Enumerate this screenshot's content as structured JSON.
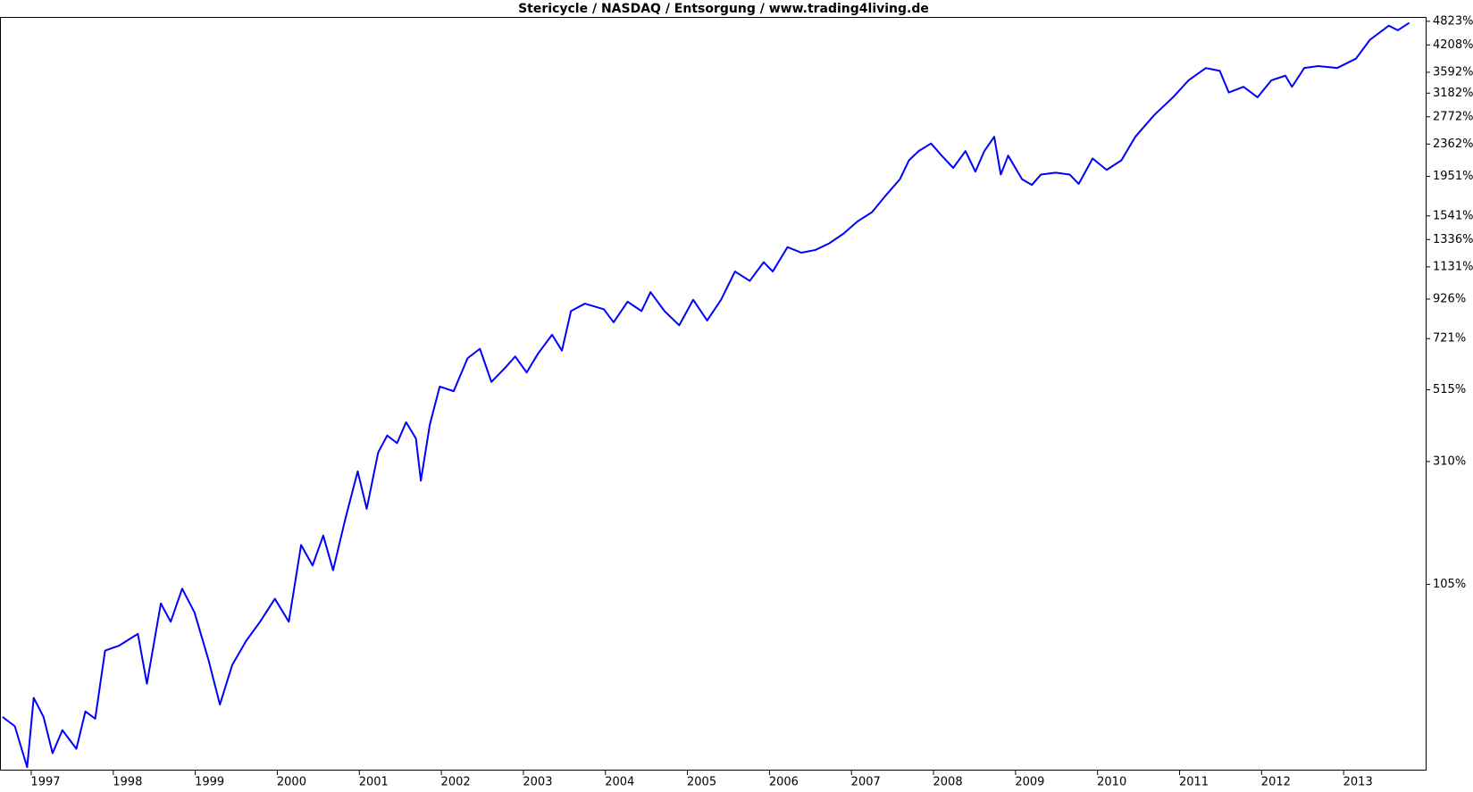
{
  "chart_data": {
    "type": "line",
    "title": "Stericycle / NASDAQ / Entsorgung / www.trading4living.de",
    "yscale": "log",
    "x": [
      1996.65,
      1996.8,
      1996.95,
      1997.03,
      1997.15,
      1997.26,
      1997.38,
      1997.55,
      1997.66,
      1997.78,
      1997.9,
      1998.07,
      1998.3,
      1998.41,
      1998.58,
      1998.7,
      1998.84,
      1998.99,
      1999.16,
      1999.3,
      1999.45,
      1999.62,
      1999.79,
      1999.97,
      2000.14,
      2000.29,
      2000.43,
      2000.56,
      2000.68,
      2000.83,
      2000.98,
      2001.09,
      2001.23,
      2001.34,
      2001.46,
      2001.57,
      2001.69,
      2001.75,
      2001.86,
      2001.98,
      2002.15,
      2002.32,
      2002.47,
      2002.61,
      2002.78,
      2002.9,
      2003.04,
      2003.18,
      2003.35,
      2003.47,
      2003.58,
      2003.75,
      2003.98,
      2004.1,
      2004.27,
      2004.44,
      2004.55,
      2004.72,
      2004.9,
      2005.07,
      2005.24,
      2005.41,
      2005.58,
      2005.76,
      2005.93,
      2006.04,
      2006.22,
      2006.39,
      2006.56,
      2006.73,
      2006.9,
      2007.07,
      2007.25,
      2007.42,
      2007.59,
      2007.7,
      2007.82,
      2007.97,
      2008.1,
      2008.24,
      2008.39,
      2008.51,
      2008.62,
      2008.74,
      2008.82,
      2008.91,
      2009.08,
      2009.2,
      2009.31,
      2009.49,
      2009.66,
      2009.77,
      2009.94,
      2010.11,
      2010.29,
      2010.46,
      2010.69,
      2010.92,
      2011.11,
      2011.32,
      2011.49,
      2011.6,
      2011.78,
      2011.95,
      2012.12,
      2012.29,
      2012.37,
      2012.52,
      2012.69,
      2012.92,
      2013.15,
      2013.32,
      2013.55,
      2013.66,
      2013.8
    ],
    "series": [
      {
        "color": "#0000ff",
        "values": [
          -3,
          -8,
          -27,
          8,
          -3,
          -21,
          -10,
          -19,
          0,
          -4,
          41,
          45,
          55,
          17,
          84,
          66,
          100,
          75,
          34,
          4,
          30,
          49,
          66,
          89,
          66,
          156,
          128,
          170,
          122,
          197,
          288,
          214,
          332,
          375,
          355,
          412,
          367,
          268,
          406,
          526,
          510,
          635,
          675,
          543,
          597,
          642,
          578,
          655,
          739,
          667,
          859,
          900,
          869,
          800,
          911,
          859,
          967,
          859,
          785,
          922,
          809,
          922,
          1099,
          1037,
          1164,
          1099,
          1276,
          1233,
          1254,
          1306,
          1383,
          1489,
          1576,
          1744,
          1918,
          2145,
          2267,
          2370,
          2206,
          2052,
          2267,
          2007,
          2267,
          2465,
          1973,
          2206,
          1918,
          1855,
          1973,
          1995,
          1973,
          1866,
          2169,
          2028,
          2145,
          2465,
          2799,
          3106,
          3429,
          3682,
          3622,
          3194,
          3301,
          3106,
          3429,
          3522,
          3301,
          3682,
          3723,
          3682,
          3887,
          4334,
          4703,
          4580,
          4781
        ]
      }
    ],
    "xlim": [
      1996.63,
      2014.0
    ],
    "xticks": [
      1997,
      1998,
      1999,
      2000,
      2001,
      2002,
      2003,
      2004,
      2005,
      2006,
      2007,
      2008,
      2009,
      2010,
      2011,
      2012,
      2013
    ],
    "ylim": [
      -28,
      4920
    ],
    "yticks": [
      {
        "value": 105,
        "label": "105%"
      },
      {
        "value": 310,
        "label": "310%"
      },
      {
        "value": 515,
        "label": "515%"
      },
      {
        "value": 721,
        "label": "721%"
      },
      {
        "value": 926,
        "label": "926%"
      },
      {
        "value": 1131,
        "label": "1131%"
      },
      {
        "value": 1336,
        "label": "1336%"
      },
      {
        "value": 1541,
        "label": "1541%"
      },
      {
        "value": 1951,
        "label": "1951%"
      },
      {
        "value": 2362,
        "label": "2362%"
      },
      {
        "value": 2772,
        "label": "2772%"
      },
      {
        "value": 3182,
        "label": "3182%"
      },
      {
        "value": 3592,
        "label": "3592%"
      },
      {
        "value": 4208,
        "label": "4208%"
      },
      {
        "value": 4823,
        "label": "4823%"
      }
    ]
  }
}
